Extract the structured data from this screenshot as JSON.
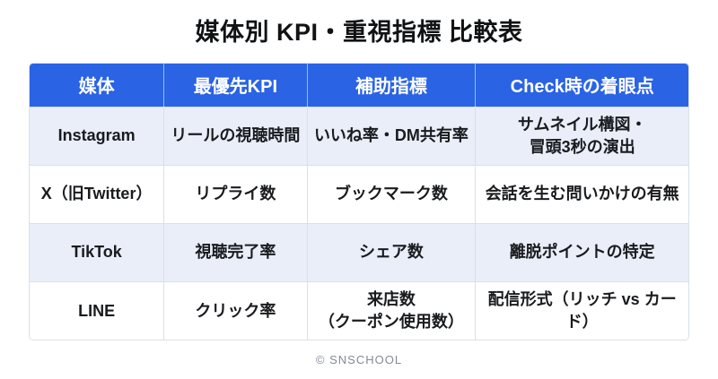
{
  "page": {
    "title": "媒体別 KPI・重視指標 比較表",
    "footer": "© SNSCHOOL"
  },
  "colors": {
    "header_bg": "#2A63E4",
    "header_text": "#FFFFFF",
    "row_alt_bg": "#E9EEF9",
    "row_bg": "#FFFFFF",
    "body_text": "#191B1E",
    "border": "#D9E0E9",
    "footer_text": "#828B99"
  },
  "table": {
    "columns": [
      "媒体",
      "最優先KPI",
      "補助指標",
      "Check時の着眼点"
    ],
    "rows": [
      [
        "Instagram",
        "リールの視聴時間",
        "いいね率・DM共有率",
        "サムネイル構図・\n冒頭3秒の演出"
      ],
      [
        "X（旧Twitter）",
        "リプライ数",
        "ブックマーク数",
        "会話を生む問いかけの有無"
      ],
      [
        "TikTok",
        "視聴完了率",
        "シェア数",
        "離脱ポイントの特定"
      ],
      [
        "LINE",
        "クリック率",
        "来店数\n（クーポン使用数）",
        "配信形式（リッチ vs カード）"
      ]
    ]
  }
}
